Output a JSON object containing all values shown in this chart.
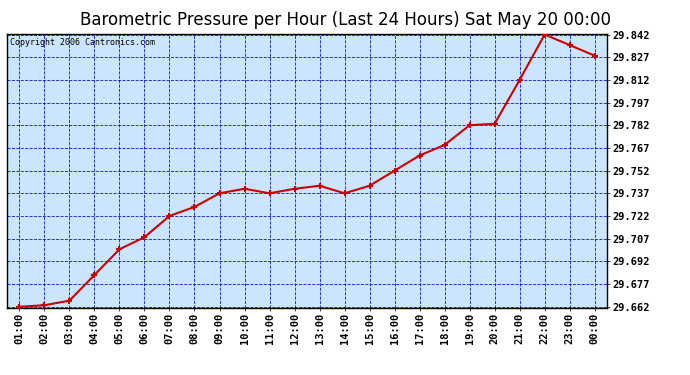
{
  "title": "Barometric Pressure per Hour (Last 24 Hours) Sat May 20 00:00",
  "copyright": "Copyright 2006 Cantronics.com",
  "x_labels": [
    "01:00",
    "02:00",
    "03:00",
    "04:00",
    "05:00",
    "06:00",
    "07:00",
    "08:00",
    "09:00",
    "10:00",
    "11:00",
    "12:00",
    "13:00",
    "14:00",
    "15:00",
    "16:00",
    "17:00",
    "18:00",
    "19:00",
    "20:00",
    "21:00",
    "22:00",
    "23:00",
    "00:00"
  ],
  "y_values": [
    29.662,
    29.663,
    29.666,
    29.683,
    29.7,
    29.708,
    29.722,
    29.728,
    29.737,
    29.74,
    29.737,
    29.74,
    29.742,
    29.737,
    29.742,
    29.752,
    29.762,
    29.769,
    29.782,
    29.783,
    29.812,
    29.842,
    29.835,
    29.828
  ],
  "y_min": 29.662,
  "y_max": 29.842,
  "y_ticks": [
    29.662,
    29.677,
    29.692,
    29.707,
    29.722,
    29.737,
    29.752,
    29.767,
    29.782,
    29.797,
    29.812,
    29.827,
    29.842
  ],
  "line_color": "#cc0000",
  "marker_color": "#cc0000",
  "bg_color": "#cce5ff",
  "plot_bg_color": "#cce5ff",
  "grid_color": "#0000bb",
  "outer_bg": "#ffffff",
  "title_fontsize": 12,
  "tick_fontsize": 7.5
}
